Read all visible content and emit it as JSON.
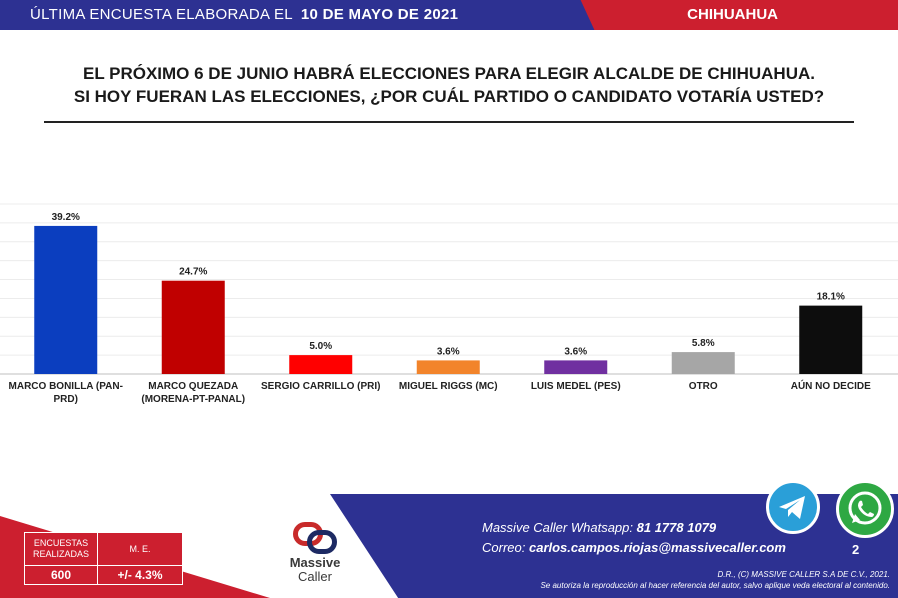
{
  "header": {
    "prefix": "ÚLTIMA ENCUESTA ELABORADA EL",
    "date": "10 DE MAYO DE 2021",
    "city": "CHIHUAHUA"
  },
  "question": {
    "line1": "EL PRÓXIMO 6 DE JUNIO HABRÁ ELECCIONES PARA ELEGIR ALCALDE DE CHIHUAHUA.",
    "line2": "SI HOY FUERAN LAS ELECCIONES, ¿POR CUÁL PARTIDO O CANDIDATO VOTARÍA USTED?"
  },
  "chart_data": {
    "type": "bar",
    "categories": [
      "MARCO BONILLA (PAN-PRD)",
      "MARCO QUEZADA (MORENA-PT-PANAL)",
      "SERGIO CARRILLO (PRI)",
      "MIGUEL RIGGS (MC)",
      "LUIS MEDEL (PES)",
      "OTRO",
      "AÚN NO DECIDE"
    ],
    "values": [
      39.2,
      24.7,
      5.0,
      3.6,
      3.6,
      5.8,
      18.1
    ],
    "value_labels": [
      "39.2%",
      "24.7%",
      "5.0%",
      "3.6%",
      "3.6%",
      "5.8%",
      "18.1%"
    ],
    "colors": [
      "#0b3ebf",
      "#c00000",
      "#ff0000",
      "#f2842b",
      "#7030a0",
      "#a6a6a6",
      "#0d0d0d"
    ],
    "ylim": [
      0,
      45
    ],
    "grid": true
  },
  "footer": {
    "stats": {
      "surveys_label": "ENCUESTAS REALIZADAS",
      "surveys_value": "600",
      "me_label": "M. E.",
      "me_value": "+/- 4.3%"
    },
    "logo_line1": "Massive",
    "logo_line2": "Caller",
    "whatsapp_label": "Massive Caller Whatsapp:",
    "whatsapp_number": "81 1778 1079",
    "email_label": "Correo:",
    "email": "carlos.campos.riojas@massivecaller.com",
    "page": "2",
    "copyright1": "D.R., (C) MASSIVE CALLER S.A DE C.V., 2021.",
    "copyright2": "Se autoriza la reproducción al hacer referencia del autor, salvo aplique veda electoral al contenido.",
    "icons": [
      "telegram-icon",
      "whatsapp-icon"
    ]
  }
}
